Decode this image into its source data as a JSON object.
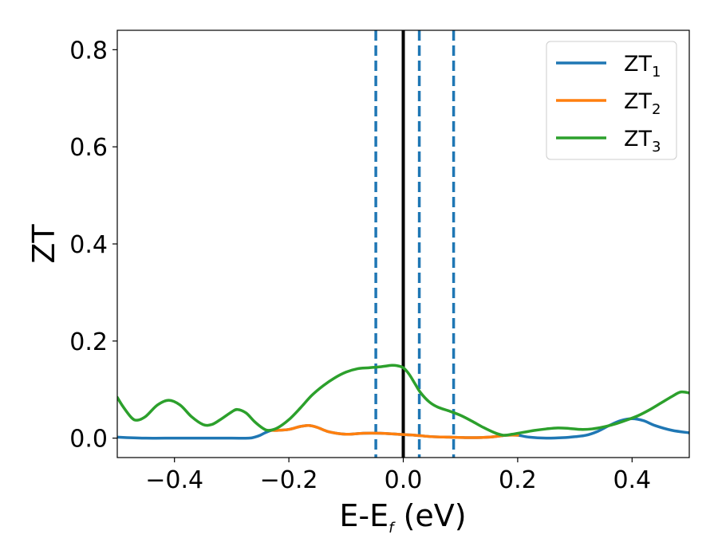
{
  "chart_data": {
    "type": "line",
    "title": "",
    "xlabel": {
      "main": "E-E",
      "sub": "f",
      "unit": " (eV)"
    },
    "ylabel": "ZT",
    "xlim": [
      -0.5,
      0.5
    ],
    "ylim": [
      -0.04,
      0.84
    ],
    "x_ticks": [
      -0.4,
      -0.2,
      0.0,
      0.2,
      0.4
    ],
    "x_tick_labels": [
      "−0.4",
      "−0.2",
      "0.0",
      "0.2",
      "0.4"
    ],
    "y_ticks": [
      0.0,
      0.2,
      0.4,
      0.6,
      0.8
    ],
    "y_tick_labels": [
      "0.0",
      "0.2",
      "0.4",
      "0.6",
      "0.8"
    ],
    "grid": false,
    "legend_position": "top-right",
    "vertical_lines": [
      {
        "x": -0.048,
        "style": "dashed",
        "color": "#1f77b4"
      },
      {
        "x": 0.0,
        "style": "solid",
        "color": "#000000"
      },
      {
        "x": 0.028,
        "style": "dashed",
        "color": "#1f77b4"
      },
      {
        "x": 0.088,
        "style": "dashed",
        "color": "#1f77b4"
      }
    ],
    "series": [
      {
        "name": "ZT",
        "name_sub": "1",
        "color": "#1f77b4",
        "points": [
          [
            -0.5,
            0.002
          ],
          [
            -0.45,
            0.0
          ],
          [
            -0.4,
            0.0
          ],
          [
            -0.35,
            0.0
          ],
          [
            -0.3,
            0.0
          ],
          [
            -0.27,
            0.0
          ],
          [
            -0.26,
            0.002
          ],
          [
            -0.25,
            0.006
          ],
          [
            -0.24,
            0.012
          ],
          [
            -0.23,
            0.016
          ],
          [
            -0.22,
            0.016
          ],
          [
            -0.2,
            0.018
          ],
          [
            -0.18,
            0.024
          ],
          [
            -0.165,
            0.026
          ],
          [
            -0.15,
            0.022
          ],
          [
            -0.13,
            0.013
          ],
          [
            -0.1,
            0.008
          ],
          [
            -0.07,
            0.01
          ],
          [
            -0.04,
            0.01
          ],
          [
            -0.01,
            0.008
          ],
          [
            0.02,
            0.006
          ],
          [
            0.05,
            0.003
          ],
          [
            0.08,
            0.002
          ],
          [
            0.12,
            0.001
          ],
          [
            0.15,
            0.002
          ],
          [
            0.18,
            0.006
          ],
          [
            0.2,
            0.006
          ],
          [
            0.22,
            0.002
          ],
          [
            0.25,
            0.0
          ],
          [
            0.28,
            0.001
          ],
          [
            0.3,
            0.003
          ],
          [
            0.32,
            0.006
          ],
          [
            0.34,
            0.014
          ],
          [
            0.36,
            0.026
          ],
          [
            0.38,
            0.036
          ],
          [
            0.4,
            0.04
          ],
          [
            0.42,
            0.036
          ],
          [
            0.44,
            0.026
          ],
          [
            0.47,
            0.016
          ],
          [
            0.5,
            0.011
          ]
        ]
      },
      {
        "name": "ZT",
        "name_sub": "2",
        "color": "#ff7f0e",
        "points": [
          [
            -0.23,
            0.016
          ],
          [
            -0.22,
            0.016
          ],
          [
            -0.2,
            0.018
          ],
          [
            -0.18,
            0.024
          ],
          [
            -0.165,
            0.026
          ],
          [
            -0.15,
            0.022
          ],
          [
            -0.13,
            0.013
          ],
          [
            -0.1,
            0.008
          ],
          [
            -0.07,
            0.01
          ],
          [
            -0.04,
            0.01
          ],
          [
            -0.01,
            0.008
          ],
          [
            0.02,
            0.006
          ],
          [
            0.05,
            0.003
          ],
          [
            0.08,
            0.002
          ],
          [
            0.12,
            0.001
          ],
          [
            0.15,
            0.002
          ],
          [
            0.18,
            0.006
          ],
          [
            0.2,
            0.006
          ]
        ]
      },
      {
        "name": "ZT",
        "name_sub": "3",
        "color": "#2ca02c",
        "points": [
          [
            -0.5,
            0.084
          ],
          [
            -0.49,
            0.065
          ],
          [
            -0.475,
            0.042
          ],
          [
            -0.465,
            0.037
          ],
          [
            -0.45,
            0.045
          ],
          [
            -0.43,
            0.068
          ],
          [
            -0.41,
            0.078
          ],
          [
            -0.39,
            0.068
          ],
          [
            -0.37,
            0.044
          ],
          [
            -0.35,
            0.028
          ],
          [
            -0.335,
            0.028
          ],
          [
            -0.32,
            0.038
          ],
          [
            -0.3,
            0.054
          ],
          [
            -0.29,
            0.059
          ],
          [
            -0.275,
            0.052
          ],
          [
            -0.26,
            0.034
          ],
          [
            -0.245,
            0.02
          ],
          [
            -0.235,
            0.016
          ],
          [
            -0.22,
            0.021
          ],
          [
            -0.2,
            0.038
          ],
          [
            -0.18,
            0.062
          ],
          [
            -0.16,
            0.088
          ],
          [
            -0.14,
            0.108
          ],
          [
            -0.12,
            0.124
          ],
          [
            -0.1,
            0.136
          ],
          [
            -0.08,
            0.143
          ],
          [
            -0.06,
            0.145
          ],
          [
            -0.04,
            0.147
          ],
          [
            -0.02,
            0.15
          ],
          [
            -0.01,
            0.149
          ],
          [
            0.0,
            0.145
          ],
          [
            0.01,
            0.132
          ],
          [
            0.02,
            0.113
          ],
          [
            0.03,
            0.094
          ],
          [
            0.045,
            0.075
          ],
          [
            0.06,
            0.064
          ],
          [
            0.08,
            0.056
          ],
          [
            0.1,
            0.047
          ],
          [
            0.12,
            0.035
          ],
          [
            0.14,
            0.022
          ],
          [
            0.16,
            0.011
          ],
          [
            0.175,
            0.006
          ],
          [
            0.19,
            0.008
          ],
          [
            0.21,
            0.012
          ],
          [
            0.23,
            0.016
          ],
          [
            0.25,
            0.019
          ],
          [
            0.27,
            0.021
          ],
          [
            0.29,
            0.02
          ],
          [
            0.31,
            0.018
          ],
          [
            0.33,
            0.019
          ],
          [
            0.35,
            0.023
          ],
          [
            0.37,
            0.029
          ],
          [
            0.39,
            0.037
          ],
          [
            0.41,
            0.046
          ],
          [
            0.43,
            0.058
          ],
          [
            0.45,
            0.072
          ],
          [
            0.47,
            0.086
          ],
          [
            0.485,
            0.095
          ],
          [
            0.5,
            0.093
          ]
        ]
      }
    ]
  }
}
